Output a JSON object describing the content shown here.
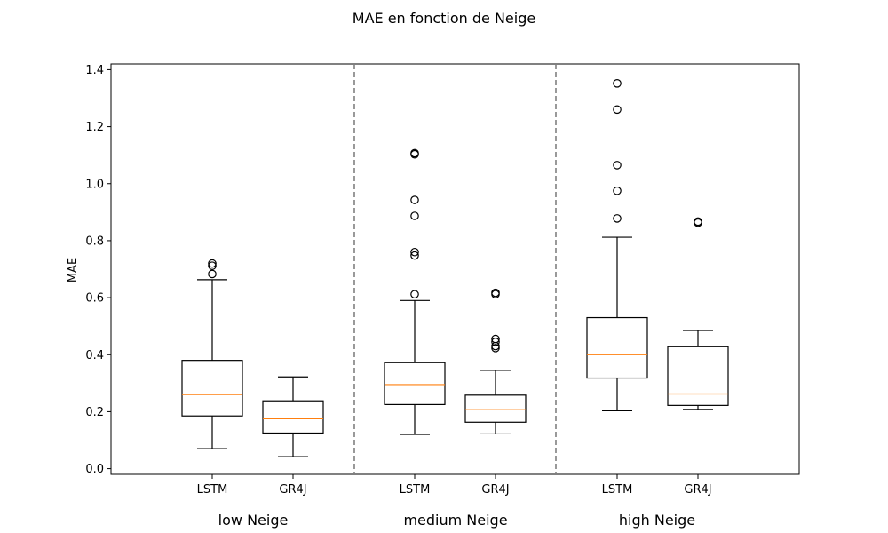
{
  "chart_data": {
    "type": "boxplot",
    "title": "MAE en fonction de Neige",
    "ylabel": "MAE",
    "xlabel": "",
    "ylim": [
      -0.02,
      1.42
    ],
    "yticks": [
      "0.0",
      "0.2",
      "0.4",
      "0.6",
      "0.8",
      "1.0",
      "1.2",
      "1.4"
    ],
    "grid": false,
    "groups": [
      {
        "label": "low Neige",
        "boxes": [
          {
            "name": "LSTM",
            "whisker_low": 0.07,
            "q1": 0.185,
            "median": 0.26,
            "q3": 0.38,
            "whisker_high": 0.663,
            "outliers": [
              0.683,
              0.712,
              0.72
            ]
          },
          {
            "name": "GR4J",
            "whisker_low": 0.042,
            "q1": 0.125,
            "median": 0.175,
            "q3": 0.238,
            "whisker_high": 0.322,
            "outliers": []
          }
        ]
      },
      {
        "label": "medium Neige",
        "boxes": [
          {
            "name": "LSTM",
            "whisker_low": 0.12,
            "q1": 0.225,
            "median": 0.295,
            "q3": 0.372,
            "whisker_high": 0.59,
            "outliers": [
              0.612,
              0.748,
              0.76,
              0.887,
              0.943,
              1.103,
              1.107
            ]
          },
          {
            "name": "GR4J",
            "whisker_low": 0.122,
            "q1": 0.163,
            "median": 0.207,
            "q3": 0.258,
            "whisker_high": 0.345,
            "outliers": [
              0.423,
              0.43,
              0.445,
              0.455,
              0.612,
              0.617
            ]
          }
        ]
      },
      {
        "label": "high Neige",
        "boxes": [
          {
            "name": "LSTM",
            "whisker_low": 0.203,
            "q1": 0.318,
            "median": 0.4,
            "q3": 0.53,
            "whisker_high": 0.812,
            "outliers": [
              0.878,
              0.975,
              1.065,
              1.26,
              1.352
            ]
          },
          {
            "name": "GR4J",
            "whisker_low": 0.208,
            "q1": 0.222,
            "median": 0.262,
            "q3": 0.428,
            "whisker_high": 0.485,
            "outliers": [
              0.863,
              0.867
            ]
          }
        ]
      }
    ],
    "colors": {
      "box": "#000000",
      "median": "#ff7f0e",
      "separator": "#808080"
    }
  }
}
